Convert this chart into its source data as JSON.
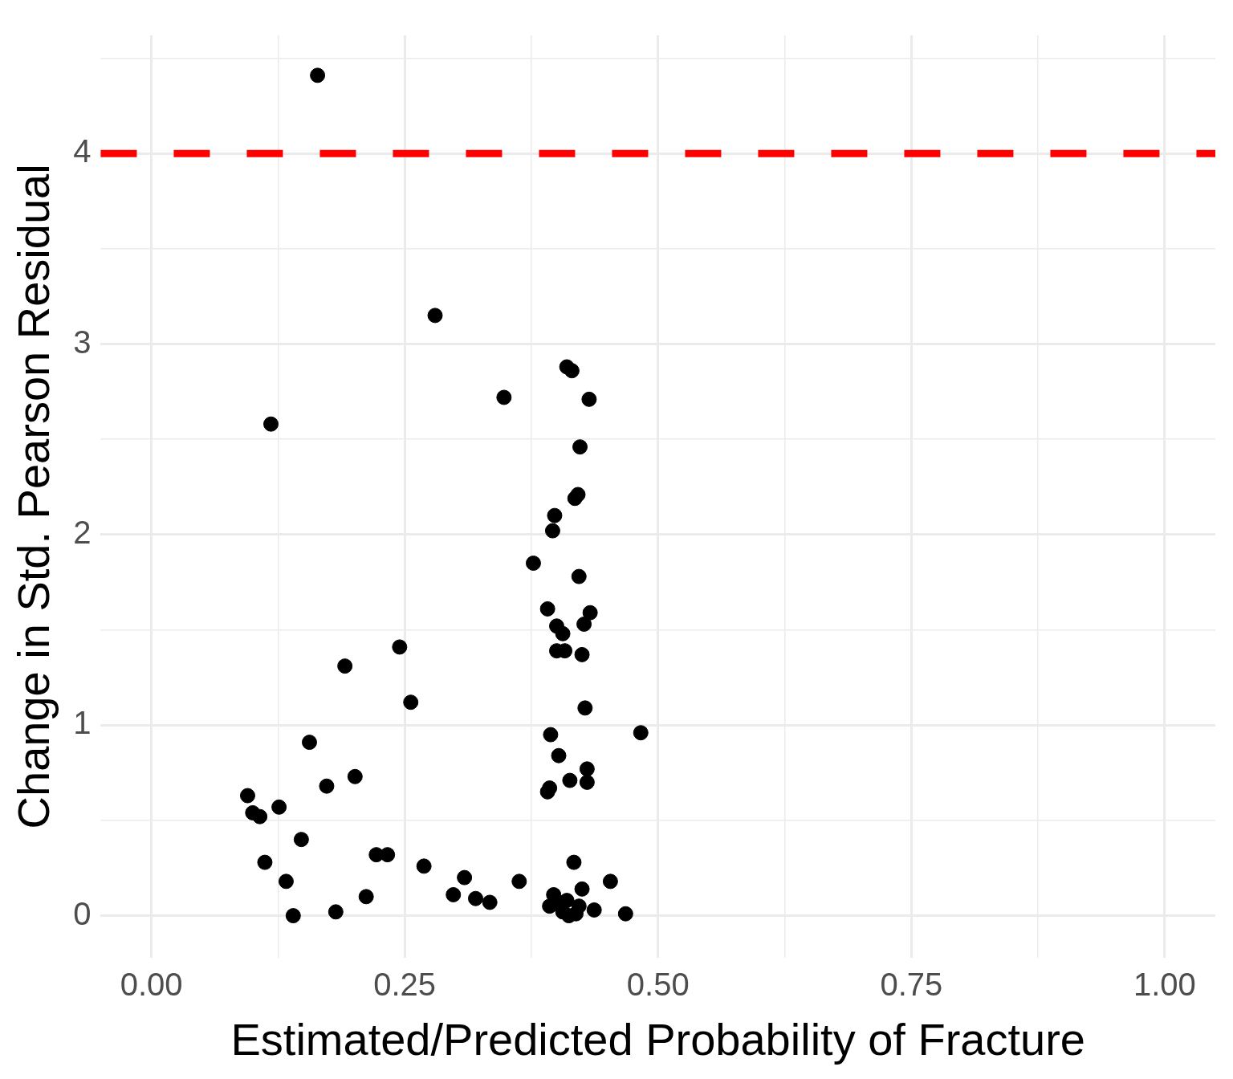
{
  "chart_data": {
    "type": "scatter",
    "xlabel": "Estimated/Predicted Probability of Fracture",
    "ylabel": "Change in Std. Pearson Residual",
    "xlim": [
      -0.05,
      1.05
    ],
    "ylim": [
      -0.22,
      4.62
    ],
    "xticks": [
      {
        "value": 0,
        "label": "0.00"
      },
      {
        "value": 0.125,
        "label": null
      },
      {
        "value": 0.25,
        "label": "0.25"
      },
      {
        "value": 0.375,
        "label": null
      },
      {
        "value": 0.5,
        "label": "0.50"
      },
      {
        "value": 0.625,
        "label": null
      },
      {
        "value": 0.75,
        "label": "0.75"
      },
      {
        "value": 0.875,
        "label": null
      },
      {
        "value": 1,
        "label": "1.00"
      }
    ],
    "yticks": [
      0,
      {
        "value": 0.5,
        "label": null
      },
      1,
      {
        "value": 1.5,
        "label": null
      },
      2,
      {
        "value": 2.5,
        "label": null
      },
      3,
      {
        "value": 3.5,
        "label": null
      },
      4,
      {
        "value": 4.5,
        "label": null
      }
    ],
    "grid": true,
    "marker": "circle",
    "legend": false,
    "ref_lines": [
      {
        "axis": "y",
        "value": 4,
        "color": "#ff0000",
        "line_style": "dashed"
      }
    ],
    "series": [
      {
        "color": "#000000",
        "x": [
          0.164,
          0.28,
          0.118,
          0.348,
          0.41,
          0.415,
          0.432,
          0.423,
          0.421,
          0.418,
          0.398,
          0.396,
          0.377,
          0.422,
          0.391,
          0.433,
          0.4,
          0.427,
          0.406,
          0.4,
          0.408,
          0.425,
          0.245,
          0.191,
          0.256,
          0.428,
          0.483,
          0.394,
          0.156,
          0.402,
          0.43,
          0.201,
          0.413,
          0.43,
          0.173,
          0.393,
          0.391,
          0.095,
          0.1,
          0.107,
          0.126,
          0.148,
          0.112,
          0.133,
          0.14,
          0.182,
          0.212,
          0.222,
          0.233,
          0.269,
          0.298,
          0.309,
          0.32,
          0.334,
          0.363,
          0.417,
          0.453,
          0.425,
          0.397,
          0.393,
          0.402,
          0.41,
          0.406,
          0.412,
          0.422,
          0.419,
          0.437,
          0.468
        ],
        "values": [
          4.41,
          3.15,
          2.58,
          2.72,
          2.88,
          2.86,
          2.71,
          2.46,
          2.21,
          2.19,
          2.1,
          2.02,
          1.85,
          1.78,
          1.61,
          1.59,
          1.52,
          1.53,
          1.48,
          1.39,
          1.39,
          1.37,
          1.41,
          1.31,
          1.12,
          1.09,
          0.96,
          0.95,
          0.91,
          0.84,
          0.77,
          0.73,
          0.71,
          0.7,
          0.68,
          0.67,
          0.65,
          0.63,
          0.54,
          0.52,
          0.57,
          0.4,
          0.28,
          0.18,
          0.0,
          0.02,
          0.1,
          0.32,
          0.32,
          0.26,
          0.11,
          0.2,
          0.09,
          0.07,
          0.18,
          0.28,
          0.18,
          0.14,
          0.11,
          0.05,
          0.06,
          0.08,
          0.02,
          0.0,
          0.05,
          0.01,
          0.03,
          0.01
        ]
      }
    ]
  }
}
